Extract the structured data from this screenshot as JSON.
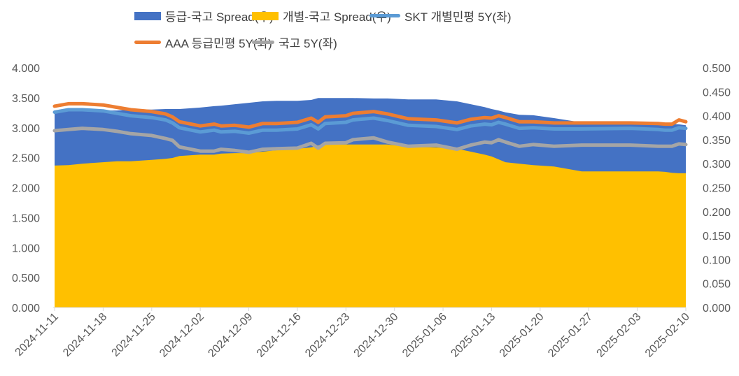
{
  "chart_data": {
    "type": "area+line",
    "title": "",
    "legend_position": "top",
    "grid": false,
    "y_left": {
      "range": [
        0,
        4
      ],
      "ticks": [
        "0.000",
        "0.500",
        "1.000",
        "1.500",
        "2.000",
        "2.500",
        "3.000",
        "3.500",
        "4.000"
      ]
    },
    "y_right": {
      "range": [
        0,
        0.5
      ],
      "ticks": [
        "0.000",
        "0.050",
        "0.100",
        "0.150",
        "0.200",
        "0.250",
        "0.300",
        "0.350",
        "0.400",
        "0.450",
        "0.500"
      ]
    },
    "x_ticks": [
      "2024-11-11",
      "2024-11-18",
      "2024-11-25",
      "2024-12-02",
      "2024-12-09",
      "2024-12-16",
      "2024-12-23",
      "2024-12-30",
      "2025-01-06",
      "2025-01-13",
      "2025-01-20",
      "2025-01-27",
      "2025-02-03",
      "2025-02-10"
    ],
    "x": [
      "2024-11-11",
      "2024-11-13",
      "2024-11-15",
      "2024-11-18",
      "2024-11-20",
      "2024-11-22",
      "2024-11-25",
      "2024-11-27",
      "2024-11-28",
      "2024-11-29",
      "2024-12-02",
      "2024-12-04",
      "2024-12-05",
      "2024-12-07",
      "2024-12-09",
      "2024-12-11",
      "2024-12-13",
      "2024-12-16",
      "2024-12-18",
      "2024-12-19",
      "2024-12-20",
      "2024-12-23",
      "2024-12-24",
      "2024-12-27",
      "2024-12-29",
      "2025-01-01",
      "2025-01-05",
      "2025-01-08",
      "2025-01-10",
      "2025-01-12",
      "2025-01-13",
      "2025-01-14",
      "2025-01-15",
      "2025-01-17",
      "2025-01-19",
      "2025-01-22",
      "2025-01-26",
      "2025-02-02",
      "2025-02-06",
      "2025-02-07",
      "2025-02-08",
      "2025-02-09",
      "2025-02-10"
    ],
    "series": [
      {
        "name": "등급-국고 Spread(우)",
        "kind": "area",
        "axis": "right",
        "color": "#4472C4",
        "values": [
          0.408,
          0.41,
          0.41,
          0.411,
          0.411,
          0.413,
          0.413,
          0.414,
          0.414,
          0.414,
          0.417,
          0.42,
          0.421,
          0.424,
          0.427,
          0.43,
          0.431,
          0.431,
          0.433,
          0.437,
          0.437,
          0.437,
          0.437,
          0.436,
          0.436,
          0.434,
          0.434,
          0.43,
          0.424,
          0.418,
          0.414,
          0.411,
          0.407,
          0.402,
          0.401,
          0.395,
          0.386,
          0.386,
          0.385,
          0.383,
          0.383,
          0.382,
          0.38
        ]
      },
      {
        "name": "개별-국고 Spread(우)",
        "kind": "area",
        "axis": "right",
        "color": "#FFC000",
        "values": [
          0.296,
          0.297,
          0.3,
          0.303,
          0.305,
          0.305,
          0.308,
          0.31,
          0.312,
          0.316,
          0.319,
          0.319,
          0.321,
          0.322,
          0.322,
          0.325,
          0.328,
          0.331,
          0.334,
          0.338,
          0.34,
          0.34,
          0.34,
          0.34,
          0.34,
          0.335,
          0.334,
          0.331,
          0.325,
          0.319,
          0.315,
          0.309,
          0.303,
          0.3,
          0.297,
          0.294,
          0.284,
          0.284,
          0.284,
          0.283,
          0.281,
          0.28,
          0.28
        ]
      },
      {
        "name": "SKT 개별민평 5Y(좌)",
        "kind": "line",
        "axis": "left",
        "color": "#5B9BD5",
        "values": [
          3.26,
          3.3,
          3.3,
          3.28,
          3.24,
          3.2,
          3.17,
          3.13,
          3.08,
          3.0,
          2.93,
          2.96,
          2.93,
          2.94,
          2.91,
          2.96,
          2.96,
          2.98,
          3.05,
          2.98,
          3.07,
          3.09,
          3.13,
          3.16,
          3.12,
          3.04,
          3.02,
          2.97,
          3.03,
          3.06,
          3.05,
          3.09,
          3.06,
          2.99,
          3.0,
          2.98,
          2.98,
          2.99,
          2.97,
          2.96,
          2.96,
          3.0,
          2.99
        ]
      },
      {
        "name": "AAA 등급민평 5Y(좌)",
        "kind": "line",
        "axis": "left",
        "color": "#ED7D31",
        "values": [
          3.36,
          3.4,
          3.4,
          3.38,
          3.34,
          3.3,
          3.27,
          3.23,
          3.18,
          3.1,
          3.03,
          3.06,
          3.03,
          3.04,
          3.01,
          3.07,
          3.07,
          3.09,
          3.16,
          3.09,
          3.18,
          3.2,
          3.24,
          3.27,
          3.23,
          3.15,
          3.13,
          3.08,
          3.14,
          3.17,
          3.16,
          3.2,
          3.17,
          3.1,
          3.1,
          3.08,
          3.08,
          3.08,
          3.07,
          3.06,
          3.06,
          3.13,
          3.1
        ]
      },
      {
        "name": "국고 5Y(좌)",
        "kind": "line",
        "axis": "left",
        "color": "#A5A5A5",
        "values": [
          2.95,
          2.97,
          2.99,
          2.97,
          2.94,
          2.9,
          2.87,
          2.82,
          2.79,
          2.68,
          2.61,
          2.61,
          2.64,
          2.62,
          2.59,
          2.64,
          2.65,
          2.66,
          2.74,
          2.66,
          2.74,
          2.75,
          2.8,
          2.83,
          2.76,
          2.69,
          2.71,
          2.64,
          2.71,
          2.76,
          2.75,
          2.8,
          2.76,
          2.69,
          2.72,
          2.69,
          2.71,
          2.71,
          2.69,
          2.69,
          2.69,
          2.73,
          2.72
        ]
      }
    ]
  }
}
